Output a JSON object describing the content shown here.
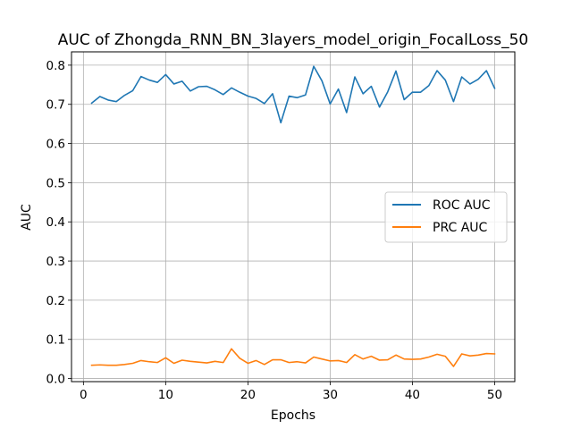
{
  "chart_data": {
    "type": "line",
    "title": "AUC of Zhongda_RNN_BN_3layers_model_origin_FocalLoss_50",
    "xlabel": "Epochs",
    "ylabel": "AUC",
    "xlim": [
      -1.45,
      52.45
    ],
    "ylim": [
      -0.0078,
      0.834
    ],
    "xticks": [
      0,
      10,
      20,
      30,
      40,
      50
    ],
    "yticks": [
      0.0,
      0.1,
      0.2,
      0.3,
      0.4,
      0.5,
      0.6,
      0.7,
      0.8
    ],
    "ytick_labels": [
      "0.0",
      "0.1",
      "0.2",
      "0.3",
      "0.4",
      "0.5",
      "0.6",
      "0.7",
      "0.8"
    ],
    "grid": true,
    "legend_position": "center-right",
    "x": [
      1,
      2,
      3,
      4,
      5,
      6,
      7,
      8,
      9,
      10,
      11,
      12,
      13,
      14,
      15,
      16,
      17,
      18,
      19,
      20,
      21,
      22,
      23,
      24,
      25,
      26,
      27,
      28,
      29,
      30,
      31,
      32,
      33,
      34,
      35,
      36,
      37,
      38,
      39,
      40,
      41,
      42,
      43,
      44,
      45,
      46,
      47,
      48,
      49,
      50
    ],
    "series": [
      {
        "name": "ROC AUC",
        "color": "#1f77b4",
        "values": [
          0.703,
          0.72,
          0.711,
          0.707,
          0.723,
          0.735,
          0.771,
          0.762,
          0.756,
          0.776,
          0.752,
          0.759,
          0.734,
          0.745,
          0.746,
          0.737,
          0.725,
          0.742,
          0.731,
          0.721,
          0.715,
          0.702,
          0.727,
          0.653,
          0.721,
          0.717,
          0.724,
          0.797,
          0.76,
          0.701,
          0.739,
          0.679,
          0.77,
          0.727,
          0.746,
          0.693,
          0.732,
          0.785,
          0.712,
          0.731,
          0.731,
          0.748,
          0.786,
          0.762,
          0.707,
          0.77,
          0.752,
          0.764,
          0.786,
          0.741
        ]
      },
      {
        "name": "PRC AUC",
        "color": "#ff7f0e",
        "values": [
          0.034,
          0.035,
          0.034,
          0.034,
          0.036,
          0.039,
          0.046,
          0.043,
          0.041,
          0.053,
          0.039,
          0.047,
          0.044,
          0.042,
          0.04,
          0.044,
          0.041,
          0.076,
          0.052,
          0.039,
          0.046,
          0.036,
          0.048,
          0.048,
          0.041,
          0.043,
          0.04,
          0.055,
          0.05,
          0.045,
          0.046,
          0.041,
          0.061,
          0.05,
          0.057,
          0.047,
          0.048,
          0.06,
          0.05,
          0.049,
          0.05,
          0.055,
          0.062,
          0.057,
          0.031,
          0.063,
          0.058,
          0.06,
          0.064,
          0.063
        ]
      }
    ]
  }
}
